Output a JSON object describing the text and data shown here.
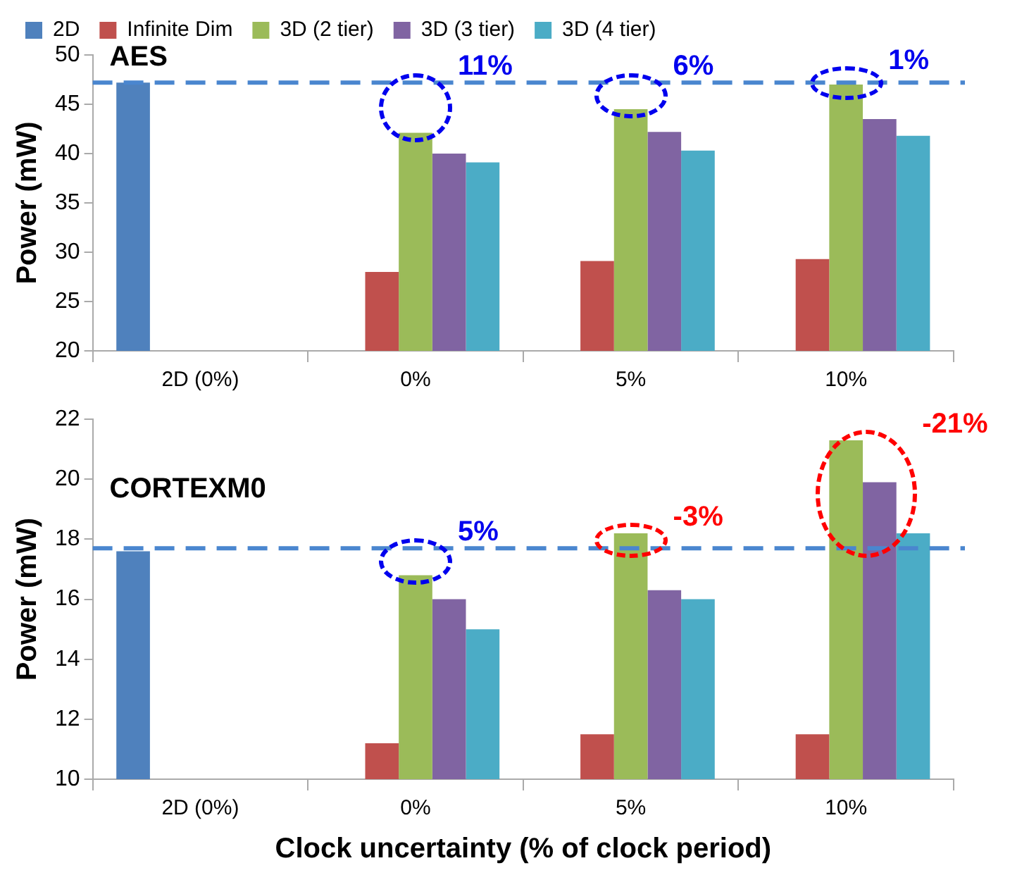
{
  "chart_data": [
    {
      "type": "bar",
      "title": "AES",
      "ylabel": "Power (mW)",
      "categories": [
        "2D (0%)",
        "0%",
        "5%",
        "10%"
      ],
      "series": [
        {
          "name": "2D",
          "color": "#4f81bd",
          "values": [
            47.2,
            null,
            null,
            null
          ]
        },
        {
          "name": "Infinite Dim",
          "color": "#c0504d",
          "values": [
            null,
            28,
            29.1,
            29.3
          ]
        },
        {
          "name": "3D (2 tier)",
          "color": "#9bbb59",
          "values": [
            null,
            42.1,
            44.5,
            47.0
          ]
        },
        {
          "name": "3D (3 tier)",
          "color": "#8064a2",
          "values": [
            null,
            40.0,
            42.2,
            43.5
          ]
        },
        {
          "name": "3D (4 tier)",
          "color": "#4bacc6",
          "values": [
            null,
            39.1,
            40.3,
            41.8
          ]
        }
      ],
      "ylim": [
        20,
        50
      ],
      "yticks": [
        20,
        25,
        30,
        35,
        40,
        45,
        50
      ],
      "grid": false,
      "legend": "top",
      "ref_lines": [
        {
          "axis": "y",
          "value": 47.2,
          "color": "#4a86cf",
          "line_style": "dashed"
        }
      ],
      "annotations": [
        "11%",
        "6%",
        "1%"
      ]
    },
    {
      "type": "bar",
      "title": "CORTEXM0",
      "ylabel": "Power (mW)",
      "xlabel": "Clock uncertainty (% of clock period)",
      "categories": [
        "2D (0%)",
        "0%",
        "5%",
        "10%"
      ],
      "series": [
        {
          "color": "#4f81bd",
          "values": [
            17.6,
            null,
            null,
            null
          ]
        },
        {
          "color": "#c0504d",
          "values": [
            null,
            11.2,
            11.5,
            11.5
          ]
        },
        {
          "color": "#9bbb59",
          "values": [
            null,
            16.8,
            18.2,
            21.3
          ]
        },
        {
          "color": "#8064a2",
          "values": [
            null,
            16.0,
            16.3,
            19.9
          ]
        },
        {
          "color": "#4bacc6",
          "values": [
            null,
            15.0,
            16.0,
            18.2
          ]
        }
      ],
      "ylim": [
        10,
        22
      ],
      "yticks": [
        10,
        12,
        14,
        16,
        18,
        20,
        22
      ],
      "grid": false,
      "ref_lines": [
        {
          "axis": "y",
          "value": 17.7,
          "color": "#4a86cf",
          "line_style": "dashed"
        }
      ],
      "annotations": [
        "5%",
        "-3%",
        "-21%"
      ]
    }
  ]
}
